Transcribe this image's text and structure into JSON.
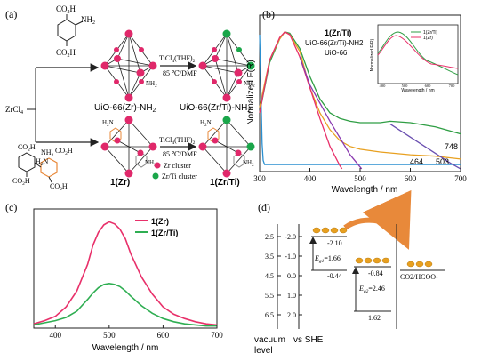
{
  "panel_a": {
    "label": "(a)",
    "reactant": "ZrCl",
    "reactant_sub": "4",
    "linker_top": {
      "co2h_1": "CO",
      "co2h_1_sub": "2",
      "co2h_1_end": "H",
      "nh2": "NH",
      "nh2_sub": "2",
      "co2h_2": "CO",
      "co2h_2_sub": "2",
      "co2h_2_end": "H"
    },
    "linker_bottom": {
      "co2h_1": "CO",
      "co2h_1_sub": "2",
      "co2h_1_end": "H",
      "nh2_a": "NH",
      "nh2_a_sub": "2",
      "h2n": "H",
      "h2n_sub": "2",
      "h2n_end": "N",
      "co2h_2": "CO",
      "co2h_2_sub": "2",
      "co2h_2_end": "H",
      "co2h_3": "CO",
      "co2h_3_sub": "2",
      "co2h_3_end": "H"
    },
    "reagent_top": "TiCl",
    "reagent_top_sub": "4",
    "reagent_top_end": "(THF)",
    "reagent_top_sub2": "2",
    "cond_top": "85 ℃/DMF",
    "reagent_bottom": "TiCl",
    "reagent_bottom_sub": "4",
    "reagent_bottom_end": "(THF)",
    "reagent_bottom_sub2": "2",
    "cond_bottom": "85 ℃/DMF",
    "mof1": "UiO-66(Zr)-NH",
    "mof1_sub": "2",
    "mof2": "UiO-66(Zr/Ti)-NH",
    "mof2_sub": "2",
    "mof3": "1(Zr)",
    "mof4": "1(Zr/Ti)",
    "nh2_label": "NH",
    "nh2_label_sub": "2",
    "h2n_label": "H",
    "h2n_label_sub": "2",
    "h2n_label_end": "N",
    "legend_zr": "Zr cluster",
    "legend_zrti": "Zr/Ti cluster",
    "colors": {
      "zr": "#e0286a",
      "ti": "#1aa64a",
      "arrow": "#222222",
      "amine": "#e8893a"
    }
  },
  "panel_b": {
    "label": "(b)",
    "xlabel": "Wavelength / nm",
    "ylabel": "Normalized F(R)",
    "xticks": [
      "300",
      "400",
      "500",
      "600",
      "700"
    ],
    "legend": [
      "1(Zr/Ti)",
      "UiO-66(Zr/Ti)-NH2",
      "UiO-66"
    ],
    "edge_labels": [
      "464",
      "503",
      "748"
    ],
    "inset": {
      "xlabel": "Wavelength / nm",
      "ylabel": "Normalized F(R)",
      "xticks": [
        "300",
        "400",
        "500",
        "600",
        "700"
      ],
      "legend": [
        "1(Zr/Ti)",
        "1(Zr)"
      ]
    }
  },
  "panel_c": {
    "label": "(c)",
    "xlabel": "Wavelength / nm",
    "xticks": [
      "400",
      "500",
      "600",
      "700"
    ],
    "legend": [
      "1(Zr)",
      "1(Zr/Ti)"
    ]
  },
  "panel_d": {
    "label": "(d)",
    "vacuum": "vacuum",
    "level": "level",
    "vs_she": "vs SHE",
    "vacuum_ticks": [
      "2.5",
      "3.5",
      "4.5",
      "5.5",
      "6.5"
    ],
    "she_ticks": [
      "-2.0",
      "-1.0",
      "0.0",
      "1.0",
      "2.0"
    ],
    "cb1": "-2.10",
    "eg1": "E",
    "eg1_sub": "g1",
    "eg1_val": "=1.66",
    "vb1": "-0.44",
    "cb2": "-0.84",
    "eg2": "E",
    "eg2_sub": "g2",
    "eg2_val": "=2.46",
    "vb2": "1.62",
    "product": "CO2/HCOO-"
  },
  "chart_data": [
    {
      "type": "line",
      "panel": "b",
      "xlabel": "Wavelength / nm",
      "ylabel": "Normalized F(R)",
      "xlim": [
        300,
        700
      ],
      "series": [
        {
          "name": "1(Zr/Ti)",
          "color": "#2f9e44",
          "x": [
            300,
            320,
            340,
            350,
            360,
            380,
            400,
            420,
            440,
            460,
            480,
            500,
            540,
            560,
            600,
            650,
            700
          ],
          "y": [
            0.42,
            0.78,
            0.95,
            1.0,
            0.99,
            0.88,
            0.68,
            0.52,
            0.42,
            0.38,
            0.36,
            0.35,
            0.35,
            0.36,
            0.35,
            0.32,
            0.27
          ]
        },
        {
          "name": "UiO-66(Zr/Ti)-NH2",
          "color": "#e8a020",
          "x": [
            300,
            320,
            340,
            350,
            360,
            380,
            400,
            420,
            440,
            460,
            480,
            500,
            540,
            600,
            650,
            700
          ],
          "y": [
            0.46,
            0.8,
            0.95,
            1.0,
            0.98,
            0.86,
            0.6,
            0.42,
            0.3,
            0.22,
            0.18,
            0.16,
            0.14,
            0.12,
            0.11,
            0.09
          ]
        },
        {
          "name": "UiO-66",
          "color": "#2a8fd0",
          "x": [
            300,
            303,
            305,
            307,
            310,
            340,
            400,
            500,
            600,
            700
          ],
          "y": [
            0.98,
            0.5,
            0.2,
            0.08,
            0.05,
            0.05,
            0.05,
            0.05,
            0.05,
            0.05
          ]
        },
        {
          "name": "1(Zr)",
          "color": "#e8306a",
          "x": [
            300,
            320,
            340,
            350,
            360,
            380,
            400,
            420,
            440,
            460,
            464
          ],
          "y": [
            0.42,
            0.8,
            0.96,
            1.0,
            0.98,
            0.82,
            0.6,
            0.38,
            0.18,
            0.04,
            0.02
          ]
        },
        {
          "name": "UiO-66(Zr/Ti)-NH2 tail",
          "color": "#8a3ab0",
          "x": [
            380,
            400,
            440,
            480,
            503
          ],
          "y": [
            0.82,
            0.62,
            0.36,
            0.12,
            0.02
          ]
        },
        {
          "name": "1(Zr/Ti) tail",
          "color": "#6a4fb0",
          "x": [
            560,
            620,
            680,
            700
          ],
          "y": [
            0.34,
            0.2,
            0.06,
            0.02
          ]
        }
      ]
    },
    {
      "type": "line",
      "panel": "c",
      "xlabel": "Wavelength / nm",
      "xlim": [
        360,
        700
      ],
      "series": [
        {
          "name": "1(Zr)",
          "color": "#e8306a",
          "x": [
            360,
            380,
            400,
            420,
            440,
            460,
            470,
            480,
            490,
            500,
            510,
            520,
            530,
            540,
            560,
            580,
            600,
            620,
            640,
            660,
            680,
            700
          ],
          "y": [
            0.04,
            0.07,
            0.11,
            0.2,
            0.35,
            0.6,
            0.78,
            0.9,
            0.97,
            1.0,
            0.98,
            0.93,
            0.84,
            0.7,
            0.48,
            0.32,
            0.2,
            0.13,
            0.09,
            0.06,
            0.04,
            0.03
          ]
        },
        {
          "name": "1(Zr/Ti)",
          "color": "#2fae52",
          "x": [
            360,
            380,
            400,
            420,
            440,
            460,
            470,
            480,
            490,
            500,
            510,
            520,
            530,
            540,
            560,
            580,
            600,
            620,
            640,
            660,
            680,
            700
          ],
          "y": [
            0.03,
            0.05,
            0.07,
            0.1,
            0.16,
            0.27,
            0.33,
            0.38,
            0.41,
            0.42,
            0.41,
            0.39,
            0.35,
            0.3,
            0.21,
            0.14,
            0.09,
            0.06,
            0.04,
            0.03,
            0.02,
            0.02
          ]
        }
      ]
    }
  ]
}
